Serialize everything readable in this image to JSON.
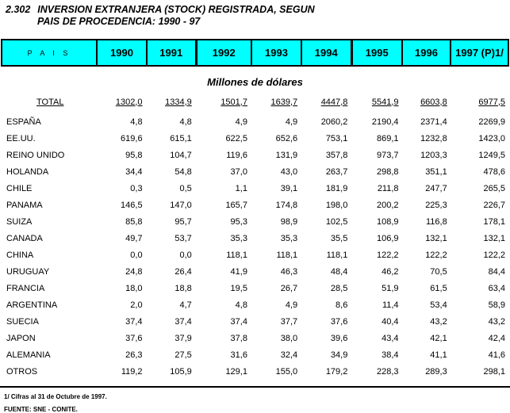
{
  "title": {
    "number": "2.302",
    "line1": "INVERSION EXTRANJERA (STOCK) REGISTRADA, SEGUN",
    "line2": "PAIS DE PROCEDENCIA: 1990 - 97"
  },
  "table": {
    "pais_header": "P A I S",
    "year_headers": [
      "1990",
      "1991",
      "1992",
      "1993",
      "1994",
      "1995",
      "1996",
      "1997 (P)1/"
    ],
    "subtitle": "Millones de dólares",
    "total_row": {
      "label": "TOTAL",
      "values": [
        "1302,0",
        "1334,9",
        "1501,7",
        "1639,7",
        "4447,8",
        "5541,9",
        "6603,8",
        "6977,5"
      ]
    },
    "rows": [
      {
        "label": "ESPAÑA",
        "values": [
          "4,8",
          "4,8",
          "4,9",
          "4,9",
          "2060,2",
          "2190,4",
          "2371,4",
          "2269,9"
        ]
      },
      {
        "label": "EE.UU.",
        "values": [
          "619,6",
          "615,1",
          "622,5",
          "652,6",
          "753,1",
          "869,1",
          "1232,8",
          "1423,0"
        ]
      },
      {
        "label": "REINO UNIDO",
        "values": [
          "95,8",
          "104,7",
          "119,6",
          "131,9",
          "357,8",
          "973,7",
          "1203,3",
          "1249,5"
        ]
      },
      {
        "label": "HOLANDA",
        "values": [
          "34,4",
          "54,8",
          "37,0",
          "43,0",
          "263,7",
          "298,8",
          "351,1",
          "478,6"
        ]
      },
      {
        "label": "CHILE",
        "values": [
          "0,3",
          "0,5",
          "1,1",
          "39,1",
          "181,9",
          "211,8",
          "247,7",
          "265,5"
        ]
      },
      {
        "label": "PANAMA",
        "values": [
          "146,5",
          "147,0",
          "165,7",
          "174,8",
          "198,0",
          "200,2",
          "225,3",
          "226,7"
        ]
      },
      {
        "label": "SUIZA",
        "values": [
          "85,8",
          "95,7",
          "95,3",
          "98,9",
          "102,5",
          "108,9",
          "116,8",
          "178,1"
        ]
      },
      {
        "label": "CANADA",
        "values": [
          "49,7",
          "53,7",
          "35,3",
          "35,3",
          "35,5",
          "106,9",
          "132,1",
          "132,1"
        ]
      },
      {
        "label": "CHINA",
        "values": [
          "0,0",
          "0,0",
          "118,1",
          "118,1",
          "118,1",
          "122,2",
          "122,2",
          "122,2"
        ]
      },
      {
        "label": "URUGUAY",
        "values": [
          "24,8",
          "26,4",
          "41,9",
          "46,3",
          "48,4",
          "46,2",
          "70,5",
          "84,4"
        ]
      },
      {
        "label": "FRANCIA",
        "values": [
          "18,0",
          "18,8",
          "19,5",
          "26,7",
          "28,5",
          "51,9",
          "61,5",
          "63,4"
        ]
      },
      {
        "label": "ARGENTINA",
        "values": [
          "2,0",
          "4,7",
          "4,8",
          "4,9",
          "8,6",
          "11,4",
          "53,4",
          "58,9"
        ]
      },
      {
        "label": "SUECIA",
        "values": [
          "37,4",
          "37,4",
          "37,4",
          "37,7",
          "37,6",
          "40,4",
          "43,2",
          "43,2"
        ]
      },
      {
        "label": "JAPON",
        "values": [
          "37,6",
          "37,9",
          "37,8",
          "38,0",
          "39,6",
          "43,4",
          "42,1",
          "42,4"
        ]
      },
      {
        "label": "ALEMANIA",
        "values": [
          "26,3",
          "27,5",
          "31,6",
          "32,4",
          "34,9",
          "38,4",
          "41,1",
          "41,6"
        ]
      },
      {
        "label": "OTROS",
        "values": [
          "119,2",
          "105,9",
          "129,1",
          "155,0",
          "179,2",
          "228,3",
          "289,3",
          "298,1"
        ]
      }
    ]
  },
  "footer": {
    "note1": "1/ Cifras al 31 de Octubre de 1997.",
    "source": "FUENTE: SNE - CONITE."
  },
  "colors": {
    "header_bg": "#00FFFF",
    "border": "#000000",
    "text": "#000000",
    "background": "#FFFFFF"
  }
}
